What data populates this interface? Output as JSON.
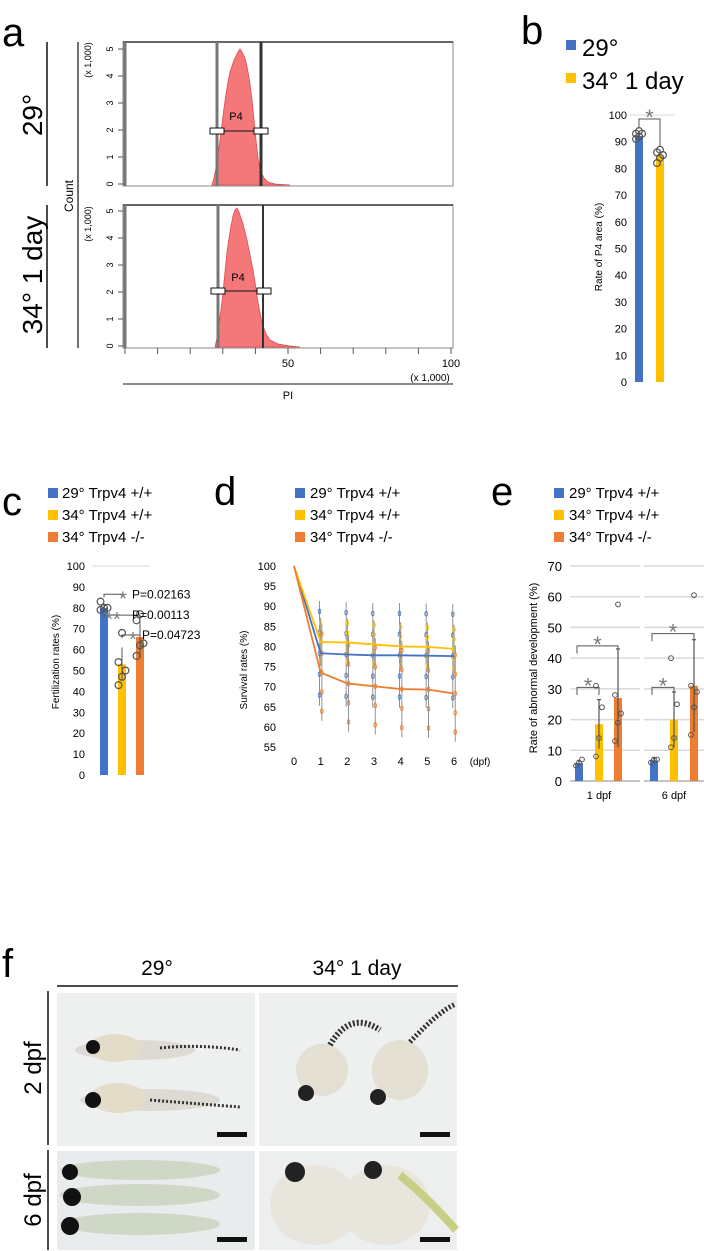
{
  "panel_letters": {
    "a": "a",
    "b": "b",
    "c": "c",
    "d": "d",
    "e": "e",
    "f": "f"
  },
  "colors": {
    "blue": "#4472C4",
    "yellow": "#FFC000",
    "orange": "#ED7D31",
    "hist": "#F4787A",
    "star": "#7a7a7a"
  },
  "panel_a": {
    "row_labels": [
      "29°",
      "34° 1 day"
    ],
    "count_label": "Count",
    "scale_label": "(x 1,000)",
    "gate_label": "P4",
    "x_title": "PI",
    "x_ticks": [
      "50",
      "100"
    ],
    "x_scale": "(x 1,000)",
    "top_y_ticks": [
      "0",
      "1",
      "2",
      "3",
      "4",
      "5"
    ],
    "bottom_y_ticks": [
      "0",
      "1",
      "2",
      "3",
      "4",
      "5"
    ]
  },
  "panel_b": {
    "legend": [
      "29°",
      "34° 1 day"
    ],
    "ylabel": "Rate of P4 area (%)",
    "yticks": [
      "0",
      "10",
      "20",
      "30",
      "40",
      "50",
      "60",
      "70",
      "80",
      "90",
      "100"
    ],
    "star": "*"
  },
  "panel_c": {
    "legend": [
      "29° Trpv4 +/+",
      "34° Trpv4 +/+",
      "34° Trpv4 -/-"
    ],
    "ylabel": "Fertilization rates (%)",
    "yticks": [
      "0",
      "10",
      "20",
      "30",
      "40",
      "50",
      "60",
      "70",
      "80",
      "90",
      "100"
    ],
    "pvalues": [
      "P=0.02163",
      "P=0.00113",
      "P=0.04723"
    ],
    "stars": [
      "*",
      "**",
      "*"
    ]
  },
  "panel_d": {
    "legend": [
      "29° Trpv4 +/+",
      "34° Trpv4 +/+",
      "34° Trpv4 -/-"
    ],
    "ylabel": "Survival rates (%)",
    "yticks": [
      "55",
      "60",
      "65",
      "70",
      "75",
      "80",
      "85",
      "90",
      "95",
      "100"
    ],
    "xticks": [
      "0",
      "1",
      "2",
      "3",
      "4",
      "5",
      "6"
    ],
    "xunit": "(dpf)"
  },
  "panel_e": {
    "legend": [
      "29° Trpv4 +/+",
      "34° Trpv4 +/+",
      "34° Trpv4 -/-"
    ],
    "ylabel": "Rate of abnormal development (%)",
    "yticks": [
      "0",
      "10",
      "20",
      "30",
      "40",
      "50",
      "60",
      "70"
    ],
    "groups": [
      "1 dpf",
      "6 dpf"
    ],
    "star": "*"
  },
  "panel_f": {
    "col_labels": [
      "29°",
      "34° 1 day"
    ],
    "row_labels": [
      "2 dpf",
      "6 dpf"
    ]
  },
  "chart_data": [
    {
      "type": "bar",
      "panel": "b",
      "categories": [
        "29°",
        "34° 1 day"
      ],
      "values": [
        92,
        85
      ],
      "errors": [
        2,
        2
      ],
      "points": [
        [
          91,
          92,
          93,
          93,
          94
        ],
        [
          82,
          84,
          85,
          86,
          87
        ]
      ],
      "ylabel": "Rate of P4 area (%)",
      "ylim": [
        0,
        100
      ],
      "significance": [
        {
          "pair": [
            0,
            1
          ],
          "label": "*"
        }
      ]
    },
    {
      "type": "bar",
      "panel": "c",
      "categories": [
        "29° Trpv4 +/+",
        "34° Trpv4 +/+",
        "34° Trpv4 -/-"
      ],
      "values": [
        80,
        53,
        66
      ],
      "errors": [
        2,
        8,
        10
      ],
      "points": [
        [
          79,
          80,
          80,
          83
        ],
        [
          43,
          47,
          50,
          54,
          68
        ],
        [
          57,
          62,
          63,
          74,
          77
        ]
      ],
      "ylabel": "Fertilization rates (%)",
      "ylim": [
        0,
        100
      ],
      "significance": [
        {
          "pair": [
            0,
            1
          ],
          "label": "*",
          "p": "P=0.02163"
        },
        {
          "pair": [
            0,
            2
          ],
          "label": "**",
          "p": "P=0.00113"
        },
        {
          "pair": [
            1,
            2
          ],
          "label": "*",
          "p": "P=0.04723"
        }
      ]
    },
    {
      "type": "line",
      "panel": "d",
      "x": [
        0,
        1,
        2,
        3,
        4,
        5,
        6
      ],
      "xlabel": "(dpf)",
      "ylabel": "Survival rates (%)",
      "ylim": [
        55,
        100
      ],
      "series": [
        {
          "name": "29° Trpv4 +/+",
          "color": "#4472C4",
          "values": [
            100,
            78.3,
            78.0,
            77.8,
            77.8,
            77.7,
            77.6
          ],
          "errors": [
            0,
            13,
            13,
            13,
            13,
            13,
            13
          ]
        },
        {
          "name": "34° Trpv4 +/+",
          "color": "#FFC000",
          "values": [
            100,
            81.1,
            81.0,
            80.5,
            80.0,
            79.9,
            79.4
          ],
          "errors": [
            0,
            6,
            6,
            6,
            6,
            6,
            6
          ]
        },
        {
          "name": "34° Trpv4 -/-",
          "color": "#ED7D31",
          "values": [
            100,
            73.5,
            70.8,
            70.1,
            69.4,
            69.3,
            68.3
          ],
          "errors": [
            0,
            12,
            12,
            12,
            12,
            12,
            12
          ]
        }
      ]
    },
    {
      "type": "bar",
      "panel": "e",
      "categories": [
        "1 dpf",
        "6 dpf"
      ],
      "ylabel": "Rate of abnormal development (%)",
      "ylim": [
        0,
        70
      ],
      "series": [
        {
          "name": "29° Trpv4 +/+",
          "color": "#4472C4",
          "values": [
            5.8,
            6.7
          ],
          "errors": [
            0.8,
            0.8
          ],
          "points": [
            [
              5,
              6,
              7
            ],
            [
              6,
              7,
              7
            ]
          ]
        },
        {
          "name": "34° Trpv4 +/+",
          "color": "#FFC000",
          "values": [
            18.5,
            20.0
          ],
          "errors": [
            8,
            9
          ],
          "points": [
            [
              8,
              14,
              24,
              31
            ],
            [
              11,
              14,
              25,
              40
            ]
          ]
        },
        {
          "name": "34° Trpv4 -/-",
          "color": "#ED7D31",
          "values": [
            27.0,
            31.0
          ],
          "errors": [
            16,
            15
          ],
          "points": [
            [
              13,
              19,
              22,
              28,
              57.5
            ],
            [
              15,
              24,
              29,
              31,
              60.5
            ]
          ]
        }
      ],
      "significance": [
        {
          "group": 0,
          "pair": [
            0,
            1
          ],
          "label": "*"
        },
        {
          "group": 0,
          "pair": [
            0,
            2
          ],
          "label": "*"
        },
        {
          "group": 1,
          "pair": [
            0,
            1
          ],
          "label": "*"
        },
        {
          "group": 1,
          "pair": [
            0,
            2
          ],
          "label": "*"
        }
      ]
    }
  ]
}
